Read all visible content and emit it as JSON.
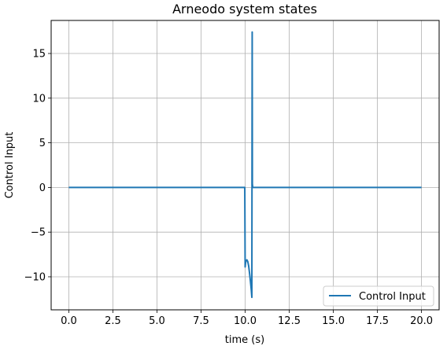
{
  "chart_data": {
    "type": "line",
    "title": "Arneodo system states",
    "xlabel": "time (s)",
    "ylabel": "Control Input",
    "xlim": [
      -1.0,
      21.0
    ],
    "ylim": [
      -13.7,
      18.7
    ],
    "xticks": [
      0.0,
      2.5,
      5.0,
      7.5,
      10.0,
      12.5,
      15.0,
      17.5,
      20.0
    ],
    "xtick_labels": [
      "0.0",
      "2.5",
      "5.0",
      "7.5",
      "10.0",
      "12.5",
      "15.0",
      "17.5",
      "20.0"
    ],
    "yticks": [
      -10,
      -5,
      0,
      5,
      10,
      15
    ],
    "ytick_labels": [
      "−10",
      "−5",
      "0",
      "5",
      "10",
      "15"
    ],
    "grid": true,
    "legend_position": "lower right",
    "series": [
      {
        "name": "Control Input",
        "color": "#1f77b4",
        "x": [
          0.0,
          9.98,
          10.0,
          10.02,
          10.05,
          10.1,
          10.15,
          10.2,
          10.25,
          10.3,
          10.35,
          10.38,
          10.4,
          10.41,
          10.43,
          10.5,
          20.0
        ],
        "y": [
          0.0,
          0.0,
          -8.9,
          -8.5,
          -8.2,
          -8.1,
          -8.3,
          -8.8,
          -9.6,
          -10.5,
          -11.5,
          -12.3,
          17.4,
          0.4,
          0.0,
          0.0,
          0.0
        ]
      }
    ]
  }
}
